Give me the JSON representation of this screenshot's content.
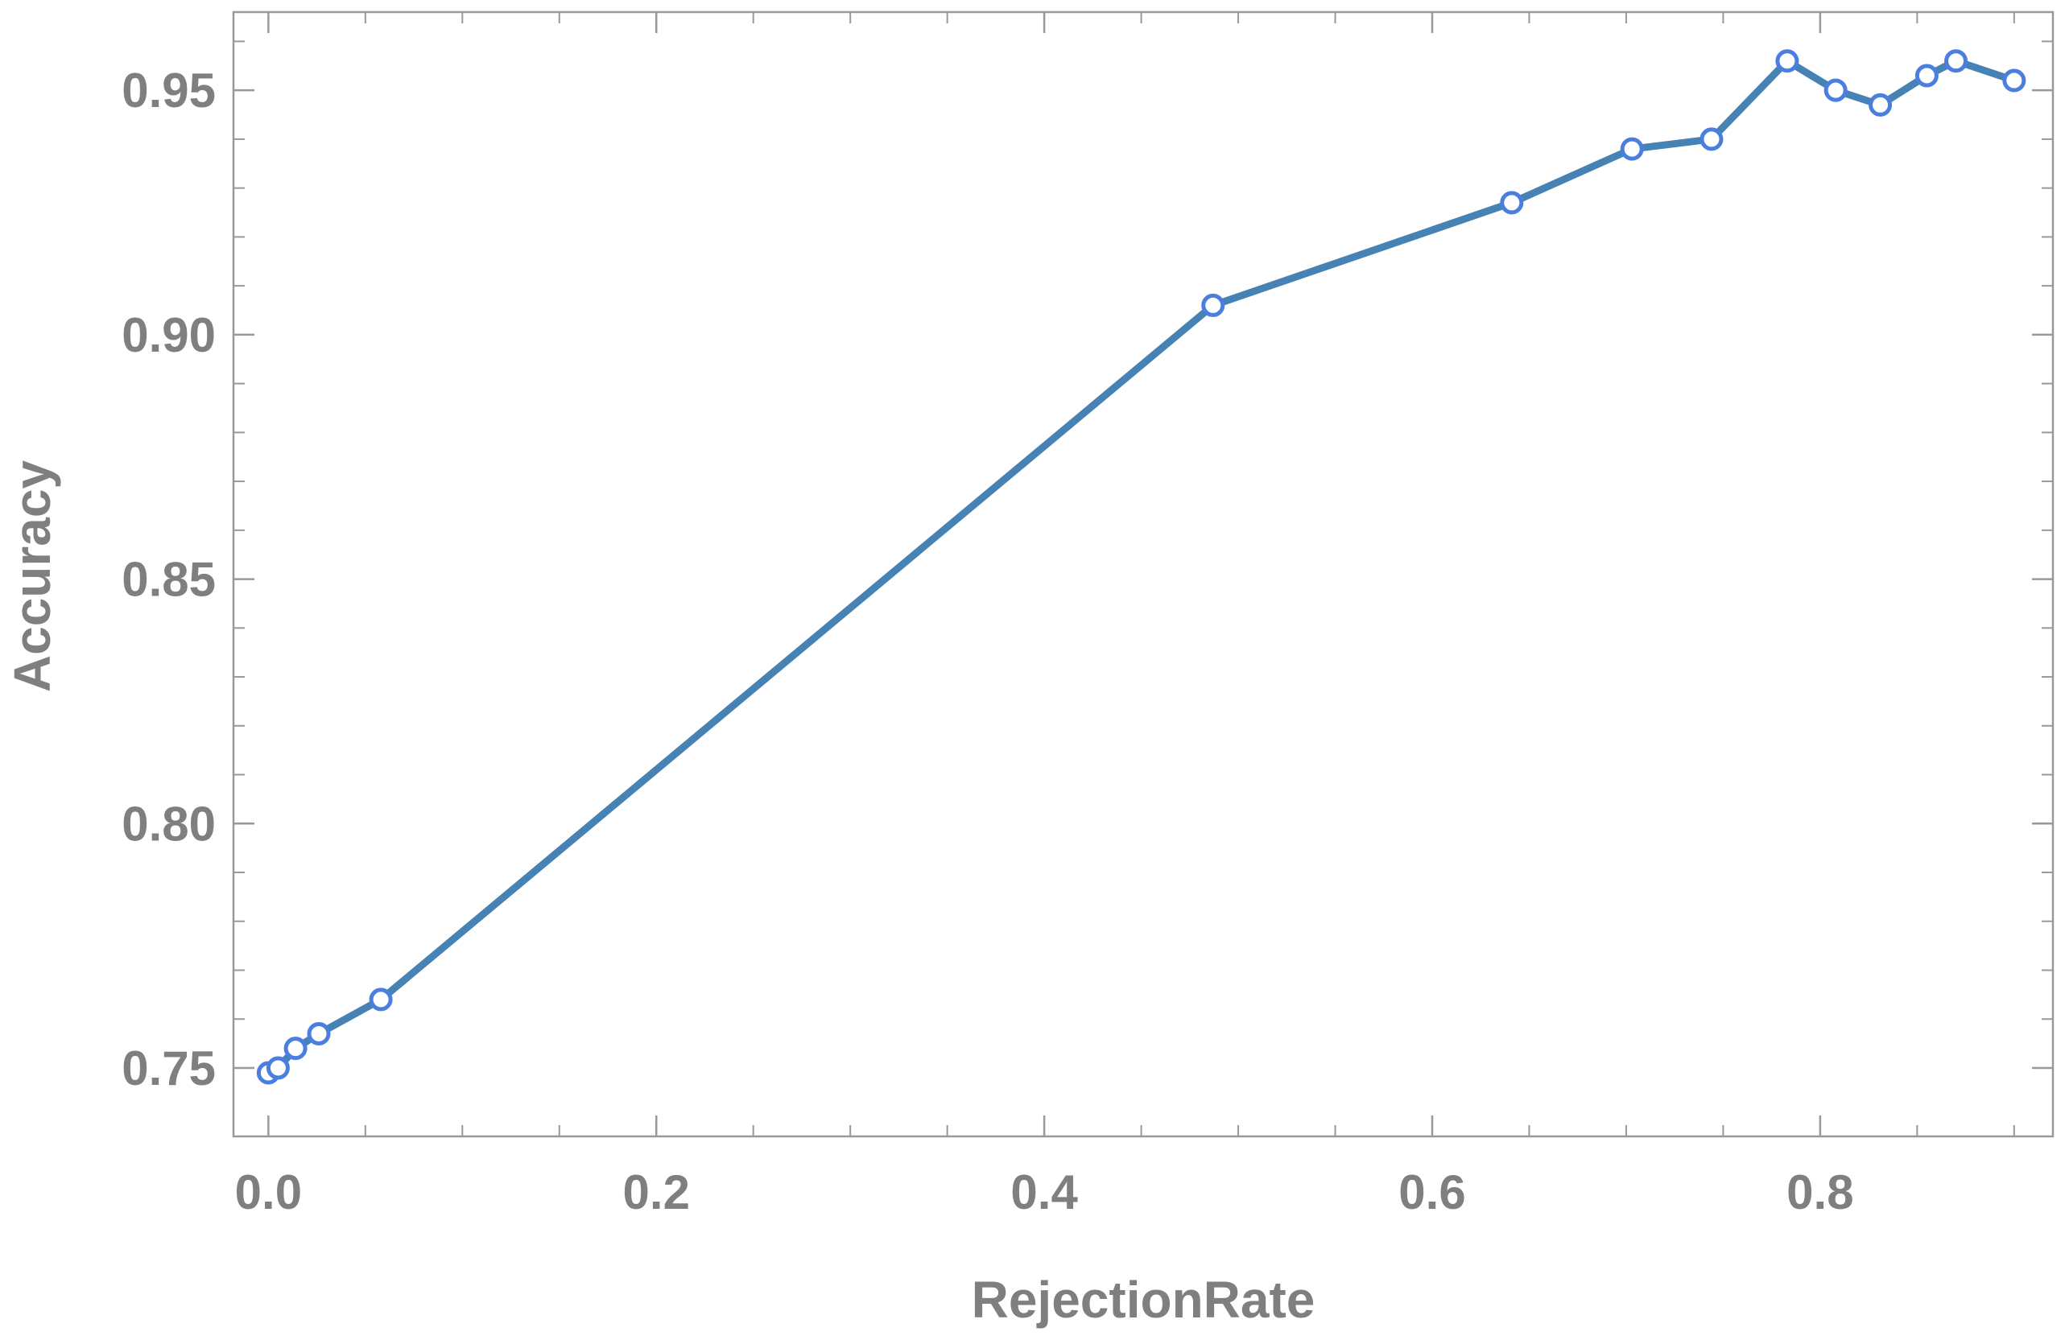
{
  "chart_data": {
    "type": "line",
    "title": "",
    "xlabel": "RejectionRate",
    "ylabel": "Accuracy",
    "xlim": [
      -0.018,
      0.92
    ],
    "ylim": [
      0.736,
      0.966
    ],
    "x_ticks": [
      0.0,
      0.2,
      0.4,
      0.6,
      0.8
    ],
    "x_tick_labels": [
      "0.0",
      "0.2",
      "0.4",
      "0.6",
      "0.8"
    ],
    "x_minor_ticks": [
      0.05,
      0.1,
      0.15,
      0.25,
      0.3,
      0.35,
      0.45,
      0.5,
      0.55,
      0.65,
      0.7,
      0.75,
      0.85,
      0.9
    ],
    "y_ticks": [
      0.75,
      0.8,
      0.85,
      0.9,
      0.95
    ],
    "y_tick_labels": [
      "0.75",
      "0.80",
      "0.85",
      "0.90",
      "0.95"
    ],
    "y_minor_ticks": [
      0.76,
      0.77,
      0.78,
      0.79,
      0.81,
      0.82,
      0.83,
      0.84,
      0.86,
      0.87,
      0.88,
      0.89,
      0.91,
      0.92,
      0.93,
      0.94,
      0.96
    ],
    "grid": false,
    "legend": "none",
    "series": [
      {
        "x": [
          0.0,
          0.005,
          0.014,
          0.026,
          0.058,
          0.487,
          0.641,
          0.703,
          0.744,
          0.783,
          0.808,
          0.831,
          0.855,
          0.87,
          0.9
        ],
        "y": [
          0.749,
          0.75,
          0.754,
          0.757,
          0.764,
          0.906,
          0.927,
          0.938,
          0.94,
          0.956,
          0.95,
          0.947,
          0.953,
          0.956,
          0.952
        ]
      }
    ],
    "colors": {
      "line": "#4682b4",
      "marker_edge": "#4a7fe0",
      "marker_fill": "#ffffff",
      "frame": "#999999",
      "text": "#7f7f7f"
    }
  }
}
